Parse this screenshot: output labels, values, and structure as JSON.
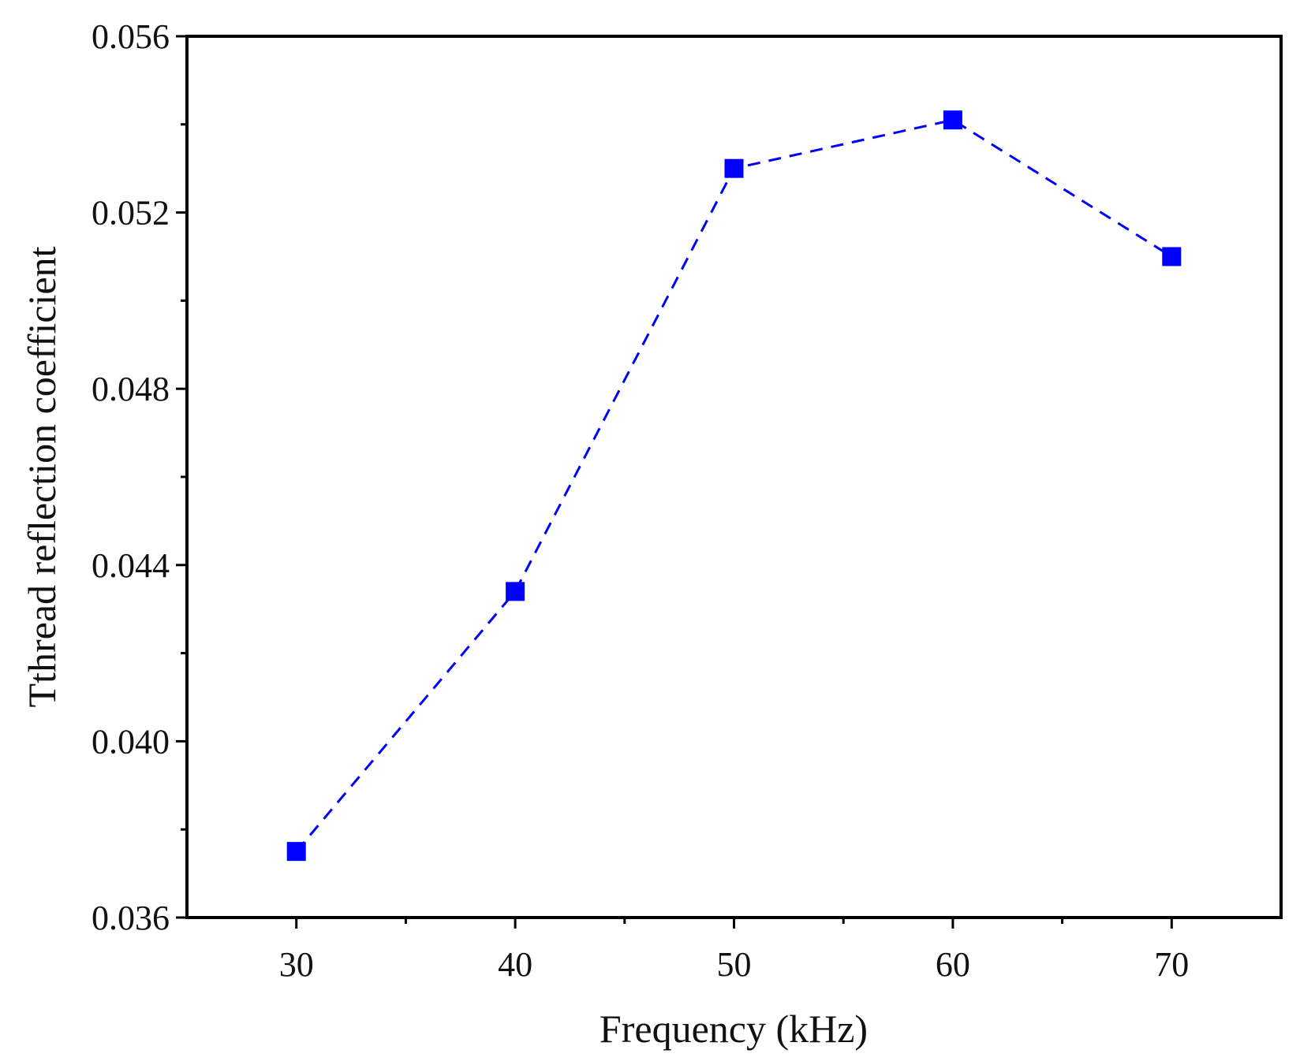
{
  "chart_data": {
    "type": "line",
    "title": "",
    "xlabel": "Frequency (kHz)",
    "ylabel": "Tthread reflection coefficient",
    "xlim": [
      25,
      75
    ],
    "ylim": [
      0.036,
      0.056
    ],
    "xticks": [
      30,
      40,
      50,
      60,
      70
    ],
    "xtick_labels": [
      "30",
      "40",
      "50",
      "60",
      "70"
    ],
    "yticks": [
      0.036,
      0.04,
      0.044,
      0.048,
      0.052,
      0.056
    ],
    "ytick_labels": [
      "0.036",
      "0.040",
      "0.044",
      "0.048",
      "0.052",
      "0.056"
    ],
    "grid": false,
    "series": [
      {
        "name": "Thread reflection coefficient",
        "color": "#0000ff",
        "line_style": "dashed",
        "marker": "square",
        "x": [
          30,
          40,
          50,
          60,
          70
        ],
        "values": [
          0.0375,
          0.0434,
          0.053,
          0.0541,
          0.051
        ]
      }
    ]
  }
}
